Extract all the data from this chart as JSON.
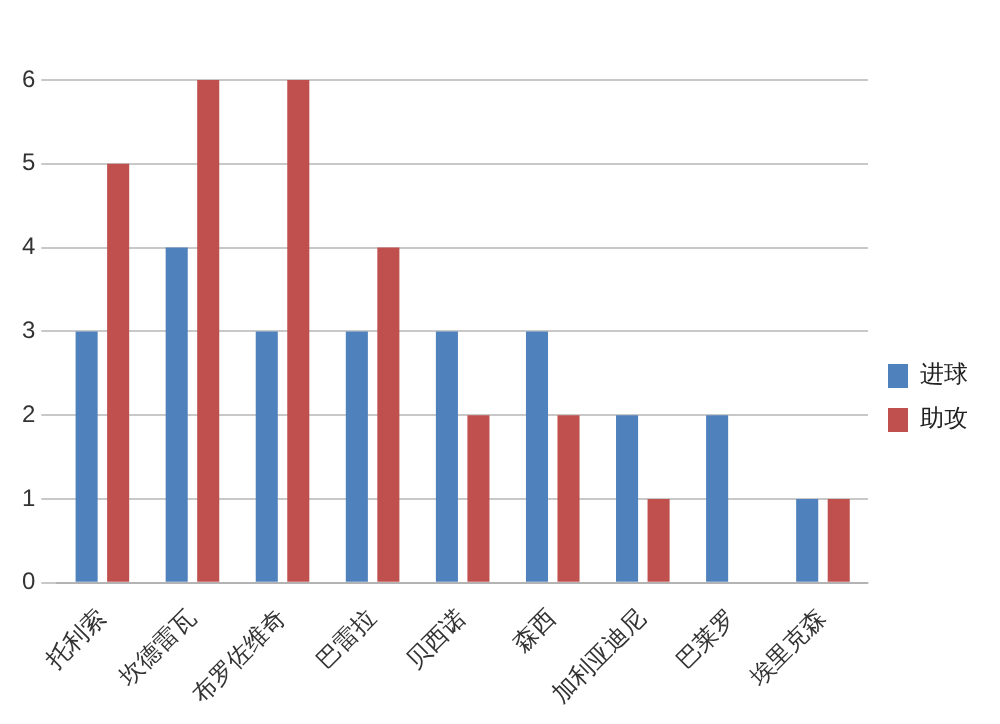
{
  "chart_data": {
    "type": "bar",
    "categories": [
      "托利索",
      "坎德雷瓦",
      "布罗佐维奇",
      "巴雷拉",
      "贝西诺",
      "森西",
      "加利亚迪尼",
      "巴莱罗",
      "埃里克森"
    ],
    "series": [
      {
        "name": "进球",
        "color": "#4f81bd",
        "values": [
          3,
          4,
          3,
          3,
          3,
          3,
          2,
          2,
          1
        ]
      },
      {
        "name": "助攻",
        "color": "#c0504d",
        "values": [
          5,
          6,
          6,
          4,
          2,
          2,
          1,
          0,
          1
        ]
      }
    ],
    "ylim": [
      0,
      6
    ],
    "yticks": [
      0,
      1,
      2,
      3,
      4,
      5,
      6
    ],
    "grid": "y",
    "legend": "right"
  }
}
